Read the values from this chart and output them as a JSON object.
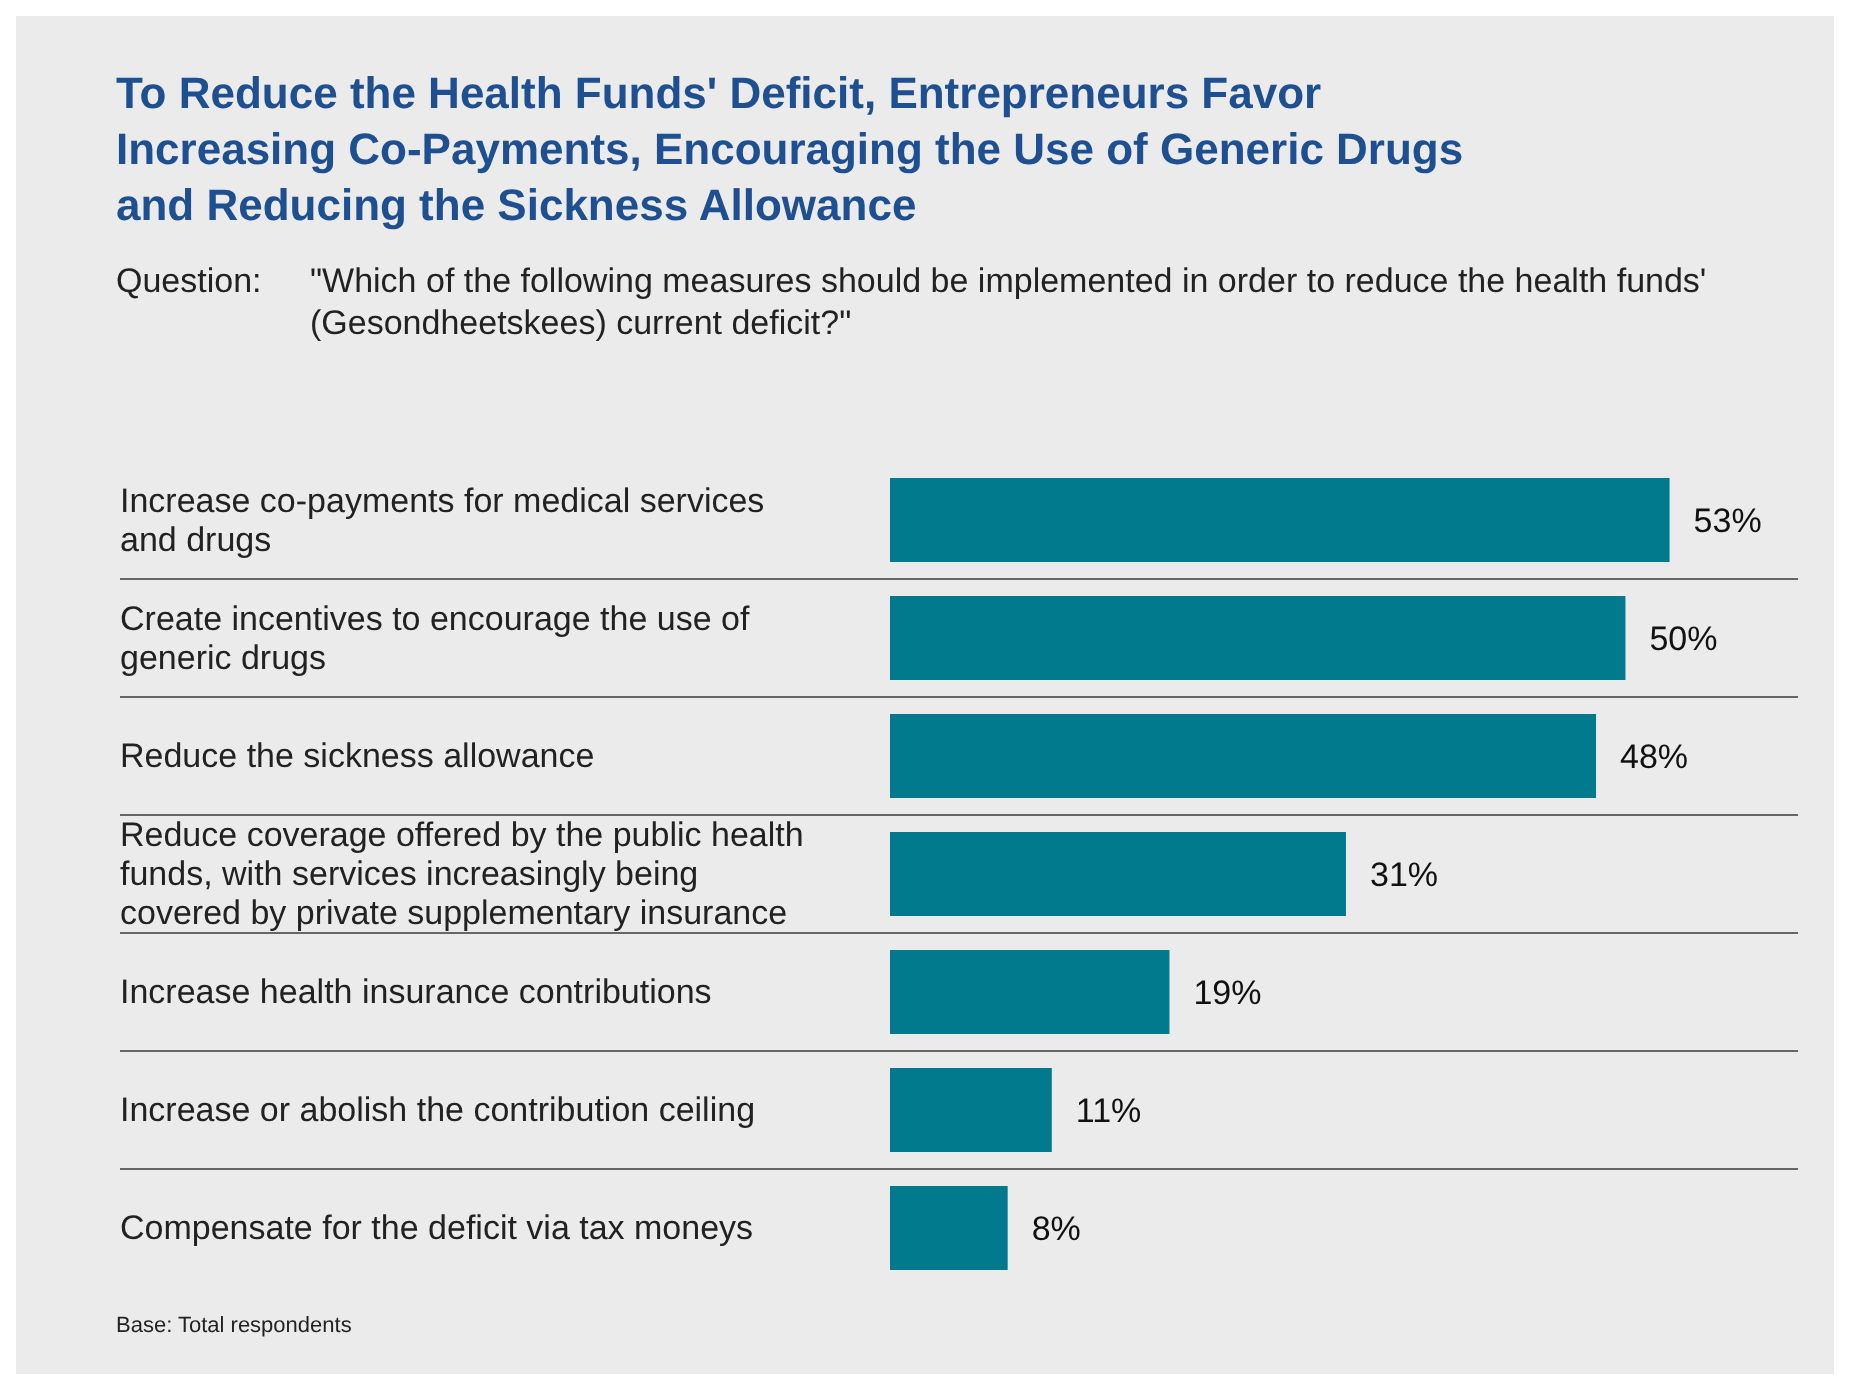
{
  "chart_data": {
    "type": "bar",
    "orientation": "horizontal",
    "title": "To Reduce the Health Funds' Deficit, Entrepreneurs Favor Increasing Co-Payments, Encouraging the Use of Generic Drugs and Reducing the Sickness Allowance",
    "subtitle": "Question: \"Which of the following measures should be implemented in order to reduce the health funds' (Gesondheetskees) current deficit?\"",
    "categories": [
      "Increase co-payments for medical services and drugs",
      "Create incentives to encourage the use of generic drugs",
      "Reduce the sickness allowance",
      "Reduce coverage offered by the public health funds, with services increasingly being covered by private supplementary insurance",
      "Increase health insurance contributions",
      "Increase or abolish the contribution ceiling",
      "Compensate for the deficit via tax moneys"
    ],
    "values": [
      53,
      50,
      48,
      31,
      19,
      11,
      8
    ],
    "value_labels": [
      "53%",
      "50%",
      "48%",
      "31%",
      "19%",
      "11%",
      "8%"
    ],
    "color": "#007a8c",
    "annotations": [
      "Base: Total respondents"
    ]
  }
}
